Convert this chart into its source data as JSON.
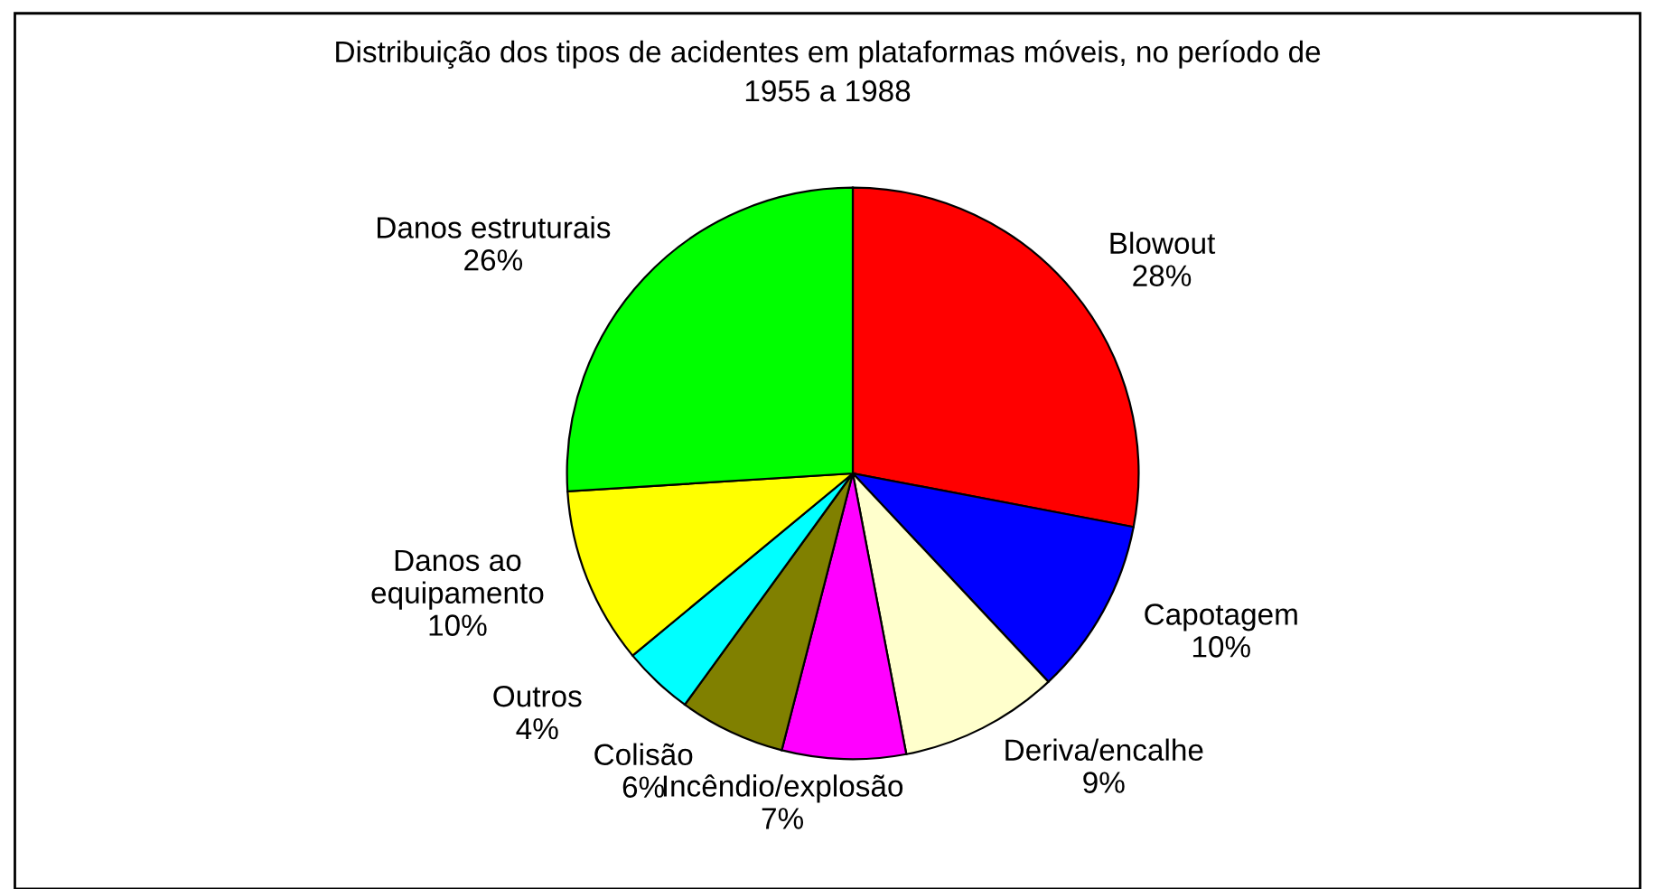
{
  "chart_data": {
    "type": "pie",
    "title": "Distribuição dos tipos de acidentes em plataformas móveis, no período de\n1955 a 1988",
    "categories": [
      "Blowout",
      "Capotagem",
      "Deriva/encalhe",
      "Incêndio/explosão",
      "Colisão",
      "Outros",
      "Danos ao\nequipamento",
      "Danos estruturais"
    ],
    "values": [
      28,
      10,
      9,
      7,
      6,
      4,
      10,
      26
    ],
    "value_labels": [
      "28%",
      "10%",
      "9%",
      "7%",
      "6%",
      "4%",
      "10%",
      "26%"
    ],
    "colors": [
      "#ff0000",
      "#0000ff",
      "#ffffcc",
      "#ff00ff",
      "#808000",
      "#00ffff",
      "#ffff00",
      "#00ff00"
    ],
    "legend": false
  }
}
